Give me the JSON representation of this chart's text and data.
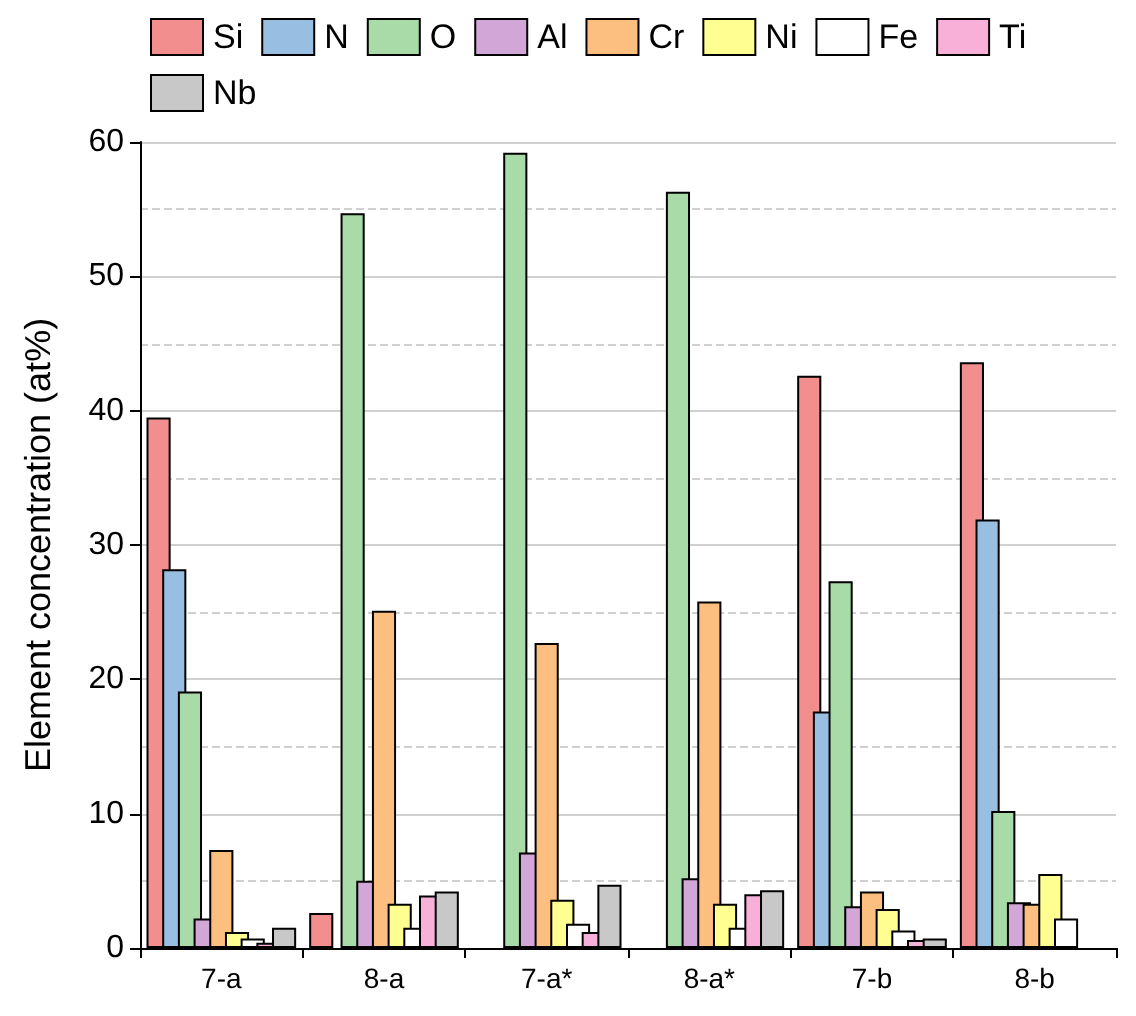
{
  "chart_data": {
    "type": "bar",
    "ylabel": "Element concentration (at%)",
    "categories": [
      "7-a",
      "8-a",
      "7-a*",
      "8-a*",
      "7-b",
      "8-b"
    ],
    "series": [
      {
        "name": "Si",
        "color": "#f28e8e",
        "values": [
          39.5,
          2.6,
          null,
          null,
          42.6,
          43.6
        ]
      },
      {
        "name": "N",
        "color": "#98bfe1",
        "values": [
          28.2,
          null,
          null,
          null,
          17.6,
          31.9
        ]
      },
      {
        "name": "O",
        "color": "#a8dba8",
        "values": [
          19.1,
          54.7,
          59.2,
          56.3,
          27.3,
          10.2
        ]
      },
      {
        "name": "Al",
        "color": "#d2a6d6",
        "values": [
          2.2,
          5.0,
          7.1,
          5.2,
          3.1,
          3.4
        ]
      },
      {
        "name": "Cr",
        "color": "#fdbf80",
        "values": [
          7.3,
          25.1,
          22.7,
          25.8,
          4.2,
          3.3
        ]
      },
      {
        "name": "Ni",
        "color": "#ffff91",
        "values": [
          1.2,
          3.3,
          3.6,
          3.3,
          2.9,
          5.5
        ]
      },
      {
        "name": "Fe",
        "color": "#ffffff",
        "values": [
          0.7,
          1.5,
          1.8,
          1.5,
          1.3,
          2.2
        ]
      },
      {
        "name": "Ti",
        "color": "#f8b0d8",
        "values": [
          0.4,
          3.9,
          1.2,
          4.0,
          0.6,
          null
        ]
      },
      {
        "name": "Nb",
        "color": "#c8c8c8",
        "values": [
          1.5,
          4.2,
          4.7,
          4.3,
          0.7,
          null
        ]
      }
    ],
    "ylim": [
      0,
      60
    ],
    "yticks": [
      0,
      10,
      20,
      30,
      40,
      50,
      60
    ],
    "grid": "y",
    "legend": "top"
  }
}
